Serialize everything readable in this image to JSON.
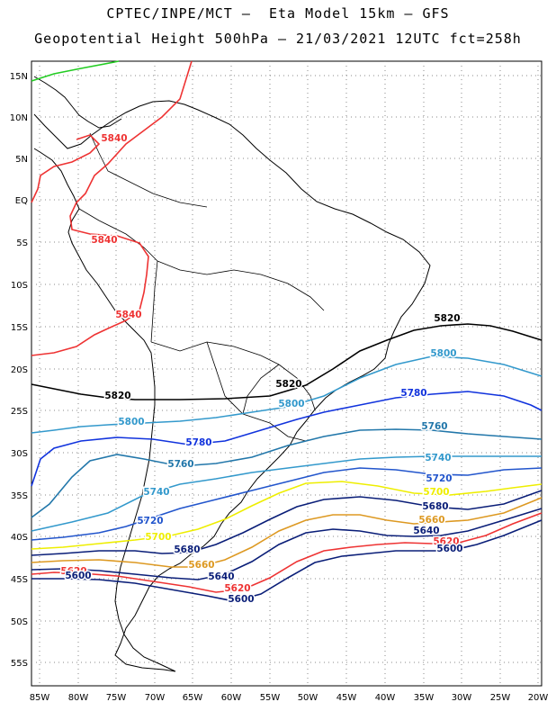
{
  "header": {
    "title_line1": "CPTEC/INPE/MCT –  Eta Model 15km – GFS",
    "title_line2": "Geopotential Height 500hPa – 21/03/2021 12UTC fct=258h"
  },
  "map": {
    "lat_labels": [
      "15N",
      "10N",
      "5N",
      "EQ",
      "5S",
      "10S",
      "15S",
      "20S",
      "25S",
      "30S",
      "35S",
      "40S",
      "45S",
      "50S",
      "55S"
    ],
    "lon_labels": [
      "85W",
      "80W",
      "75W",
      "70W",
      "65W",
      "60W",
      "55W",
      "50W",
      "45W",
      "40W",
      "35W",
      "30W",
      "25W",
      "20W"
    ],
    "grid": true,
    "contours": [
      {
        "value": "5840",
        "color": "#ee3333",
        "labels": [
          "5840",
          "5840",
          "5840"
        ]
      },
      {
        "value": "5820",
        "color": "#000000",
        "labels": [
          "5820",
          "5820",
          "5820"
        ]
      },
      {
        "value": "5800",
        "color": "#3399cc",
        "labels": [
          "5800",
          "5800",
          "5800"
        ]
      },
      {
        "value": "5780",
        "color": "#1133dd",
        "labels": [
          "5780",
          "5780"
        ]
      },
      {
        "value": "5760",
        "color": "#2277aa",
        "labels": [
          "5760",
          "5760"
        ]
      },
      {
        "value": "5740",
        "color": "#3399cc",
        "labels": [
          "5740",
          "5740"
        ]
      },
      {
        "value": "5720",
        "color": "#2255cc",
        "labels": [
          "5720",
          "5720"
        ]
      },
      {
        "value": "5700",
        "color": "#eeee00",
        "labels": [
          "5700",
          "5700"
        ]
      },
      {
        "value": "5680",
        "color": "#0a1e78",
        "labels": [
          "5680",
          "5680"
        ]
      },
      {
        "value": "5660",
        "color": "#dd9922",
        "labels": [
          "5660",
          "5660"
        ]
      },
      {
        "value": "5640",
        "color": "#0a1e78",
        "labels": [
          "5640",
          "5640"
        ]
      },
      {
        "value": "5620",
        "color": "#ee3333",
        "labels": [
          "5620",
          "5620",
          "5620"
        ]
      },
      {
        "value": "5600",
        "color": "#0a1e78",
        "labels": [
          "5600",
          "5600",
          "5600"
        ]
      }
    ],
    "green_contour_color": "#22cc22"
  }
}
